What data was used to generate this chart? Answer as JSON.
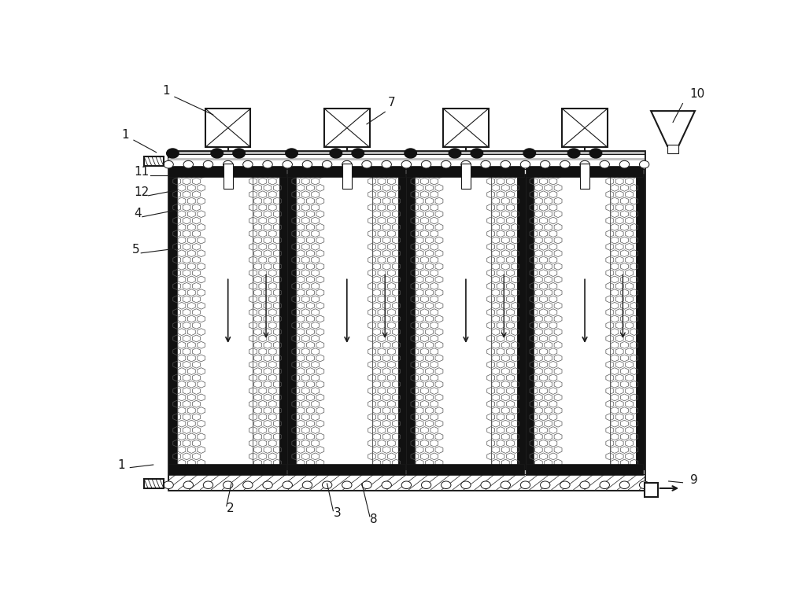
{
  "bg_color": "#ffffff",
  "line_color": "#1a1a1a",
  "dark_color": "#111111",
  "mesh_color": "#aaaaaa",
  "light_gray": "#c0c0c0",
  "num_columns": 4,
  "fig_w": 10.0,
  "fig_h": 7.77,
  "dpi": 100,
  "FL": 0.115,
  "FR": 0.895,
  "FT": 0.835,
  "FB": 0.115,
  "label_fs": 11
}
